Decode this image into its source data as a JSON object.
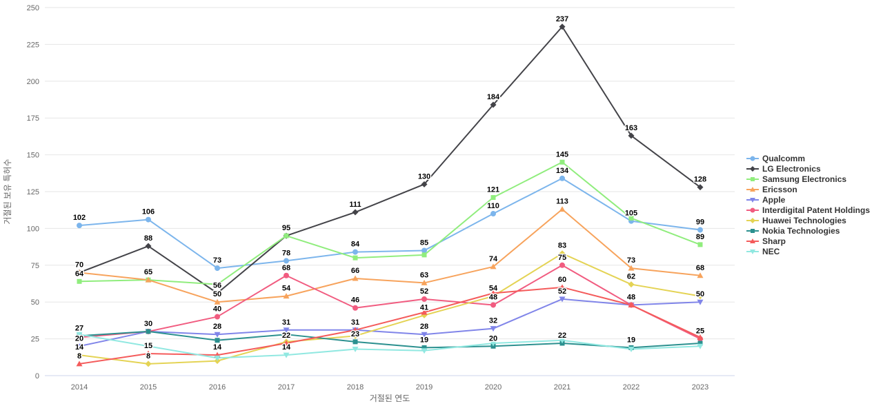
{
  "chart_data": {
    "type": "line",
    "title": "",
    "xlabel": "거절된 연도",
    "ylabel": "거절된 보유 특허수",
    "categories": [
      "2014",
      "2015",
      "2016",
      "2017",
      "2018",
      "2019",
      "2020",
      "2021",
      "2022",
      "2023"
    ],
    "ylim": [
      0,
      250
    ],
    "ytick_step": 25,
    "grid": true,
    "legend_position": "right",
    "series": [
      {
        "name": "Qualcomm",
        "color": "#7cb5ec",
        "marker": "circle",
        "values": [
          102,
          106,
          73,
          78,
          84,
          85,
          110,
          134,
          105,
          99
        ],
        "labels": [
          "102",
          "106",
          "73",
          "78",
          "84",
          "85",
          "110",
          "134",
          "105",
          "99"
        ]
      },
      {
        "name": "LG Electronics",
        "color": "#434348",
        "marker": "diamond",
        "values": [
          70,
          88,
          56,
          95,
          111,
          130,
          184,
          237,
          163,
          128
        ],
        "labels": [
          "70",
          "88",
          "56",
          "95",
          "111",
          "130",
          "184",
          "237",
          "163",
          "128"
        ]
      },
      {
        "name": "Samsung Electronics",
        "color": "#90ed7d",
        "marker": "square",
        "values": [
          64,
          65,
          62,
          95,
          80,
          82,
          121,
          145,
          107,
          89
        ],
        "labels": [
          "64",
          "65",
          "",
          "",
          "",
          "",
          "121",
          "145",
          "",
          "89"
        ]
      },
      {
        "name": "Ericsson",
        "color": "#f7a35c",
        "marker": "triangle",
        "values": [
          70,
          65,
          50,
          54,
          66,
          63,
          74,
          113,
          73,
          68
        ],
        "labels": [
          "",
          "",
          "50",
          "54",
          "66",
          "63",
          "74",
          "113",
          "73",
          "68"
        ]
      },
      {
        "name": "Apple",
        "color": "#8085e9",
        "marker": "triangle-down",
        "values": [
          20,
          30,
          28,
          31,
          31,
          28,
          32,
          52,
          48,
          50
        ],
        "labels": [
          "20",
          "30",
          "28",
          "31",
          "31",
          "28",
          "32",
          "52",
          "",
          "50"
        ]
      },
      {
        "name": "Interdigital Patent Holdings",
        "color": "#f15c80",
        "marker": "circle",
        "values": [
          26,
          30,
          40,
          68,
          46,
          52,
          48,
          75,
          48,
          25
        ],
        "labels": [
          "",
          "",
          "40",
          "68",
          "46",
          "52",
          "48",
          "75",
          "48",
          "25"
        ]
      },
      {
        "name": "Huawei Technologies",
        "color": "#e4d354",
        "marker": "diamond",
        "values": [
          14,
          8,
          10,
          23,
          27,
          41,
          54,
          83,
          62,
          54
        ],
        "labels": [
          "14",
          "8",
          "",
          "",
          "",
          "41",
          "54",
          "83",
          "62",
          ""
        ]
      },
      {
        "name": "Nokia Technologies",
        "color": "#2b908f",
        "marker": "square",
        "values": [
          27,
          30,
          24,
          28,
          23,
          19,
          20,
          22,
          19,
          22
        ],
        "labels": [
          "27",
          "",
          "",
          "",
          "23",
          "19",
          "20",
          "22",
          "19",
          ""
        ]
      },
      {
        "name": "Sharp",
        "color": "#f45b5b",
        "marker": "triangle",
        "values": [
          8,
          15,
          14,
          22,
          31,
          43,
          56,
          60,
          48,
          26
        ],
        "labels": [
          "8",
          "15",
          "14",
          "22",
          "",
          "",
          "",
          "60",
          "",
          ""
        ]
      },
      {
        "name": "NEC",
        "color": "#91e8e1",
        "marker": "triangle-down",
        "values": [
          28,
          20,
          12,
          14,
          18,
          17,
          22,
          24,
          18,
          20
        ],
        "labels": [
          "",
          "",
          "",
          "14",
          "",
          "",
          "",
          "",
          "",
          ""
        ]
      }
    ]
  },
  "colors": {
    "background": "#ffffff",
    "grid": "#e6e6e6",
    "axis_line": "#ccd6eb",
    "tick_text": "#666666",
    "legend_text": "#333333",
    "data_label": "#000000"
  }
}
